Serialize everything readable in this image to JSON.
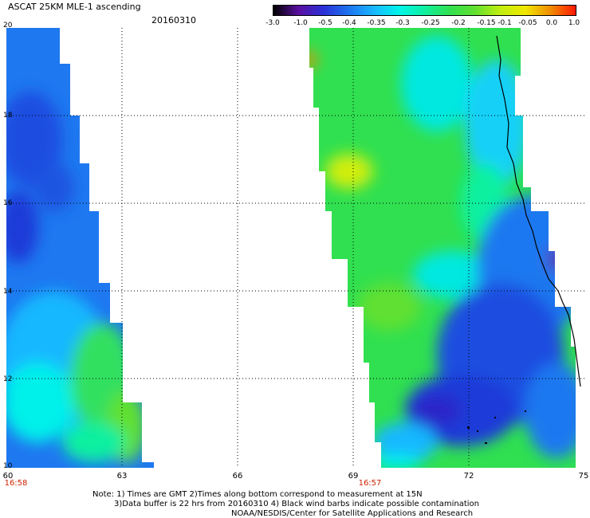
{
  "header": {
    "title": "ASCAT 25KM MLE-1 ascending",
    "date": "20160310"
  },
  "colorbar": {
    "ticks": [
      "-3.0",
      "-1.0",
      "-0.5",
      "-0.4",
      "-0.35",
      "-0.3",
      "-0.25",
      "-0.2",
      "-0.15",
      "-0.1",
      "-0.05",
      "0.0",
      "1.0"
    ],
    "colors": [
      "#000000",
      "#5a0fa0",
      "#2a30d8",
      "#1e74f0",
      "#18b8ff",
      "#00f5ea",
      "#10f0a0",
      "#30e050",
      "#60e030",
      "#c0ee10",
      "#f0e800",
      "#f08c00",
      "#ff1800"
    ]
  },
  "map": {
    "lat_labels": [
      "20",
      "18",
      "16",
      "14",
      "12",
      "10"
    ],
    "lon_labels": [
      "60",
      "63",
      "66",
      "69",
      "72",
      "75"
    ],
    "pass_times": [
      "16:58",
      "16:57"
    ],
    "lat_range": [
      10,
      20
    ],
    "lon_range": [
      60,
      75
    ]
  },
  "notes": [
    "Note: 1) Times are GMT 2)Times along bottom correspond to measurement at 15N",
    "3)Data buffer is 22 hrs from 20160310 4) Black wind barbs indicate possible contamination",
    "NOAA/NESDIS/Center for Satellite Applications and Research"
  ]
}
